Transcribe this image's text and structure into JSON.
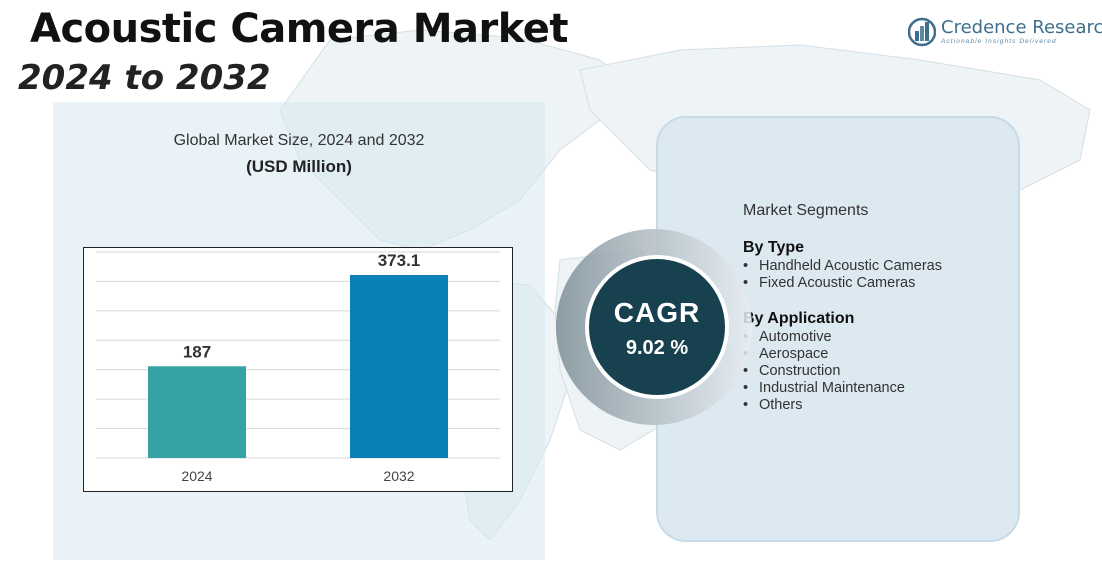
{
  "header": {
    "title": "Acoustic Camera Market",
    "subtitle": "2024 to 2032"
  },
  "logo": {
    "name": "Credence Research",
    "tagline": "Actionable Insights Delivered"
  },
  "chart": {
    "heading": "Global Market Size, 2024 and 2032",
    "unit": "(USD Million)"
  },
  "chart_data": {
    "type": "bar",
    "title": "Global Market Size, 2024 and 2032",
    "ylabel": "(USD Million)",
    "xlabel": "",
    "categories": [
      "2024",
      "2032"
    ],
    "values": [
      187,
      373.1
    ],
    "value_labels": [
      "187",
      "373.1"
    ],
    "colors": [
      "#35a3a3",
      "#0a80b4"
    ],
    "ylim": [
      0,
      420
    ],
    "grid": true,
    "grid_color": "#d7d7d7"
  },
  "cagr": {
    "label": "CAGR",
    "value": "9.02 %"
  },
  "segments": {
    "title": "Market Segments",
    "groups": [
      {
        "heading": "By Type",
        "items": [
          "Handheld Acoustic Cameras",
          "Fixed Acoustic Cameras"
        ]
      },
      {
        "heading": "By Application",
        "items": [
          "Automotive",
          "Aerospace",
          "Construction",
          "Industrial Maintenance",
          "Others"
        ]
      }
    ]
  },
  "colors": {
    "panel_bg": "#d6e7f0",
    "segment_panel_bg": "#dde9f1",
    "cagr_disc": "#17414f",
    "logo": "#3f6e8c"
  }
}
